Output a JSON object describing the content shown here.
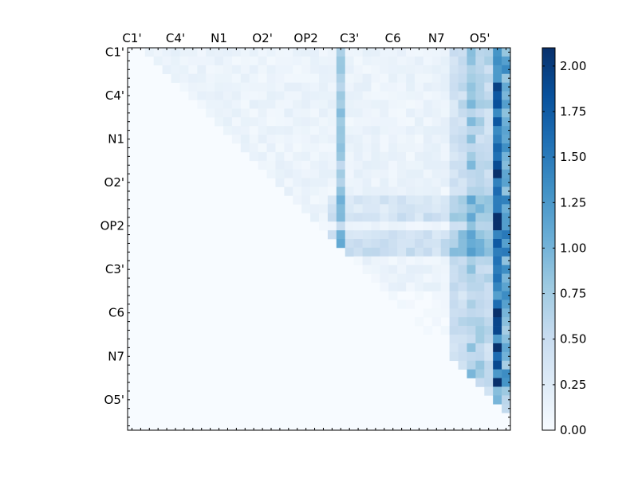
{
  "chart_data": {
    "type": "heatmap",
    "grid_size": 44,
    "x_tick_labels": [
      "C1'",
      "C4'",
      "N1",
      "O2'",
      "OP2",
      "C3'",
      "C6",
      "N7",
      "O5'"
    ],
    "y_tick_labels": [
      "C1'",
      "C4'",
      "N1",
      "O2'",
      "OP2",
      "C3'",
      "C6",
      "N7",
      "O5'"
    ],
    "label_step": 5,
    "vmin": 0.0,
    "vmax": 2.1,
    "colormap": "Blues",
    "colorbar_ticks": [
      "0.00",
      "0.25",
      "0.50",
      "0.75",
      "1.00",
      "1.25",
      "1.50",
      "1.75",
      "2.00"
    ],
    "colorbar_tick_values": [
      0.0,
      0.25,
      0.5,
      0.75,
      1.0,
      1.25,
      1.5,
      1.75,
      2.0
    ],
    "triangle": "upper",
    "hot_columns": [
      [
        40,
        0.55
      ],
      [
        41,
        0.45
      ],
      [
        42,
        1.7
      ],
      [
        43,
        1.05
      ],
      [
        24,
        0.65
      ],
      [
        39,
        0.7
      ],
      [
        37,
        0.35
      ],
      [
        38,
        0.4
      ]
    ],
    "hot_rows": [
      [
        21,
        0.3
      ],
      [
        22,
        0.4
      ],
      [
        23,
        0.45
      ],
      [
        17,
        0.3
      ],
      [
        18,
        0.3
      ],
      [
        19,
        0.35
      ]
    ]
  }
}
